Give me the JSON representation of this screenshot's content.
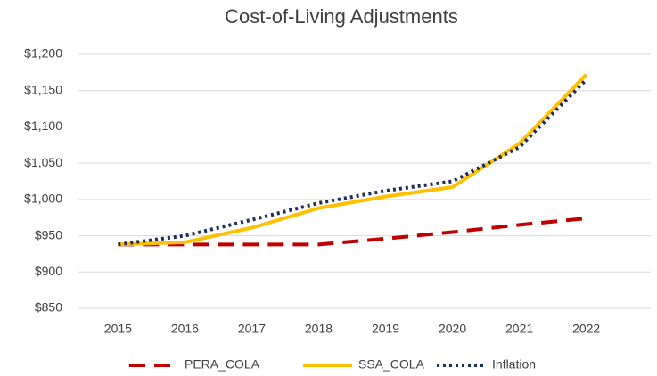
{
  "chart_data": {
    "type": "line",
    "title": "Cost-of-Living Adjustments",
    "categories": [
      "2015",
      "2016",
      "2017",
      "2018",
      "2019",
      "2020",
      "2021",
      "2022"
    ],
    "series": [
      {
        "name": "PERA_COLA",
        "color": "#c00000",
        "dash": "dashed",
        "values": [
          938,
          938,
          938,
          938,
          946,
          955,
          965,
          974
        ]
      },
      {
        "name": "SSA_COLA",
        "color": "#ffc000",
        "dash": "solid",
        "values": [
          938,
          941,
          961,
          988,
          1004,
          1017,
          1077,
          1172
        ]
      },
      {
        "name": "Inflation",
        "color": "#1f2d5c",
        "dash": "dotted",
        "values": [
          938,
          950,
          972,
          995,
          1012,
          1025,
          1072,
          1165
        ]
      }
    ],
    "ylim": [
      850,
      1200
    ],
    "yticks": [
      {
        "value": 850,
        "label": "$850"
      },
      {
        "value": 900,
        "label": "$900"
      },
      {
        "value": 950,
        "label": "$950"
      },
      {
        "value": 1000,
        "label": "$1,000"
      },
      {
        "value": 1050,
        "label": "$1,050"
      },
      {
        "value": 1100,
        "label": "$1,100"
      },
      {
        "value": 1150,
        "label": "$1,150"
      },
      {
        "value": 1200,
        "label": "$1,200"
      }
    ],
    "grid": true,
    "legend": "bottom"
  }
}
